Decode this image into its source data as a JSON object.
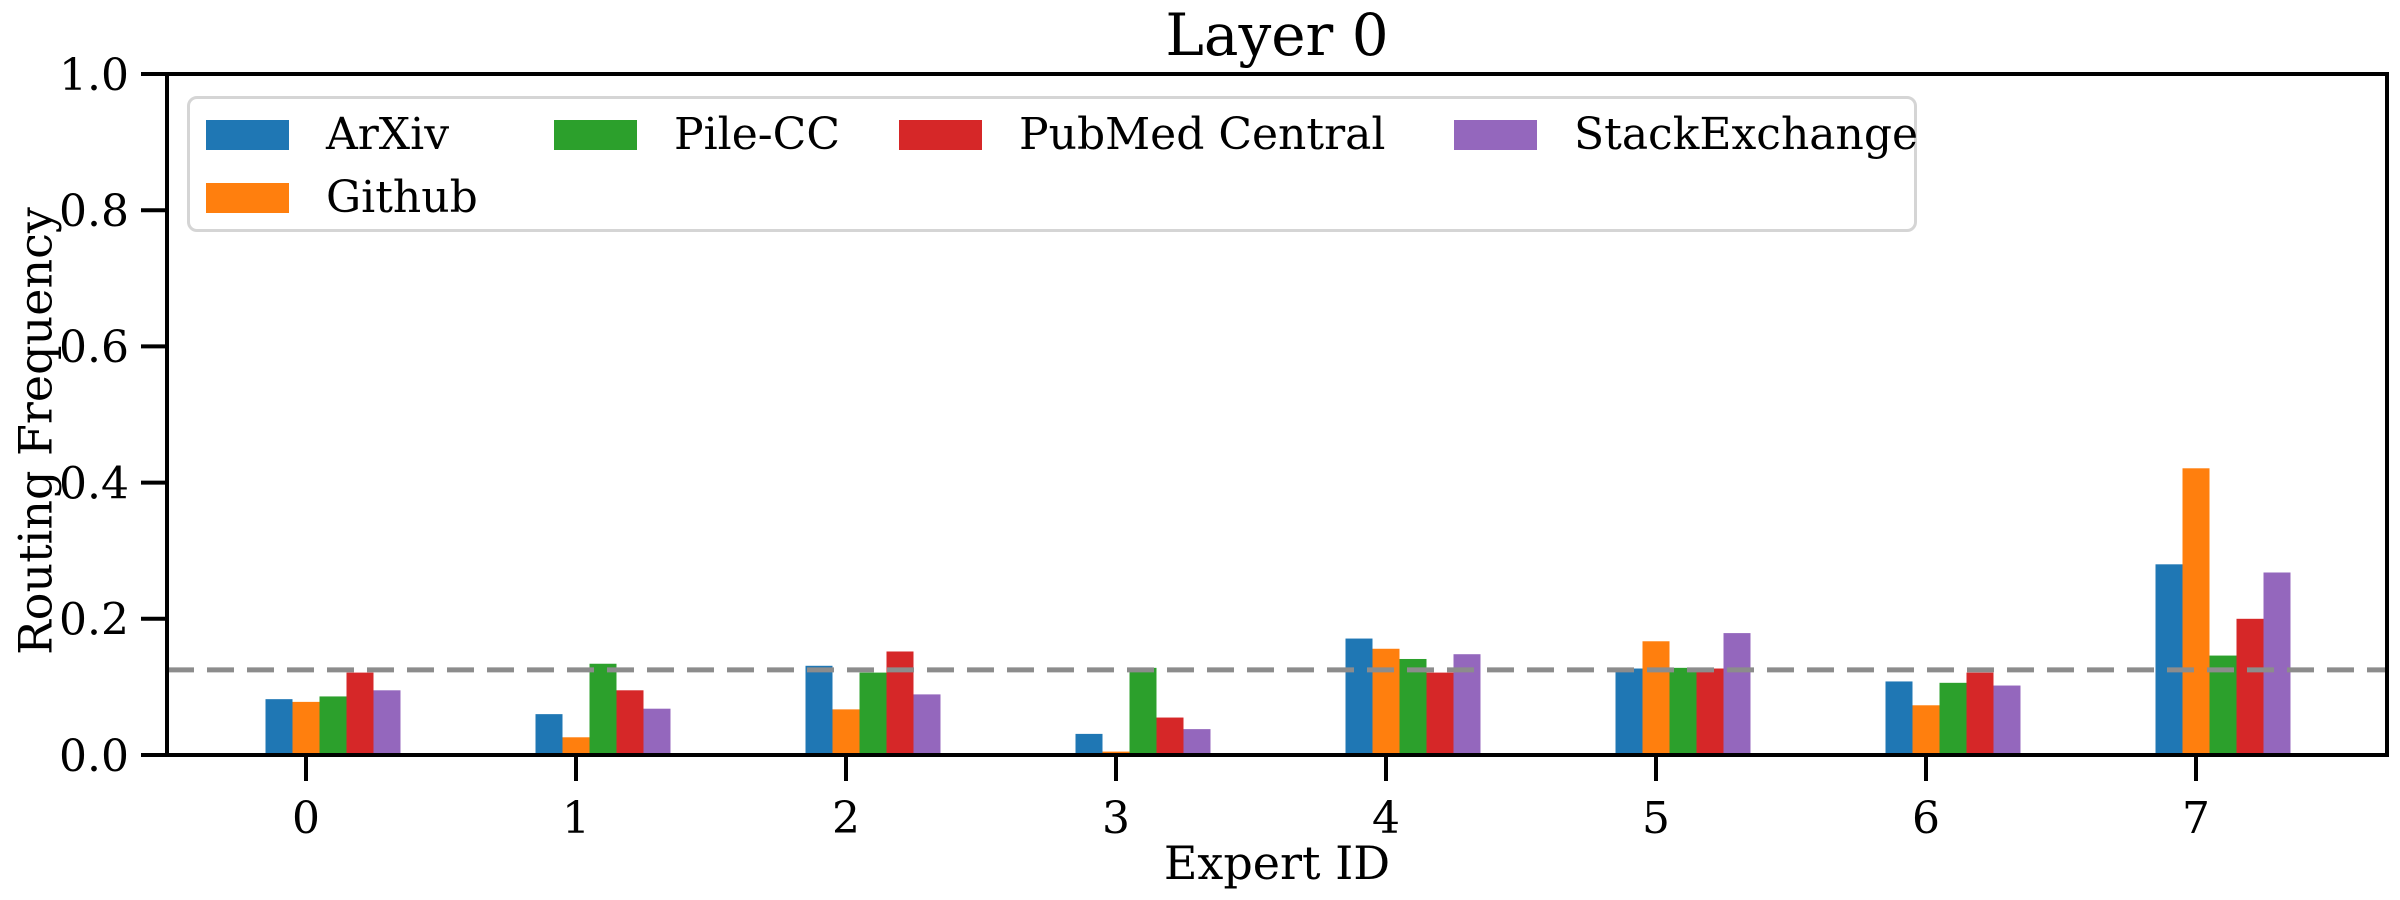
{
  "figure": {
    "background": "#ffffff",
    "axis_color": "#000000"
  },
  "chart_data": {
    "type": "bar",
    "title": "Layer 0",
    "xlabel": "Expert ID",
    "ylabel": "Routing Frequency",
    "categories": [
      "0",
      "1",
      "2",
      "3",
      "4",
      "5",
      "6",
      "7"
    ],
    "series": [
      {
        "name": "ArXiv",
        "color": "#1f77b4",
        "values": [
          0.082,
          0.06,
          0.131,
          0.031,
          0.171,
          0.127,
          0.108,
          0.28
        ]
      },
      {
        "name": "Github",
        "color": "#ff7f0e",
        "values": [
          0.078,
          0.026,
          0.067,
          0.005,
          0.156,
          0.167,
          0.073,
          0.421
        ]
      },
      {
        "name": "Pile-CC",
        "color": "#2ca02c",
        "values": [
          0.086,
          0.134,
          0.121,
          0.128,
          0.141,
          0.128,
          0.106,
          0.146
        ]
      },
      {
        "name": "PubMed Central",
        "color": "#d62728",
        "values": [
          0.121,
          0.095,
          0.152,
          0.055,
          0.121,
          0.127,
          0.121,
          0.2
        ]
      },
      {
        "name": "StackExchange",
        "color": "#9467bd",
        "values": [
          0.095,
          0.068,
          0.089,
          0.038,
          0.148,
          0.179,
          0.102,
          0.268
        ]
      }
    ],
    "ytick_labels": [
      "0.0",
      "0.2",
      "0.4",
      "0.6",
      "0.8",
      "1.0"
    ],
    "yticks": [
      0.0,
      0.2,
      0.4,
      0.6,
      0.8,
      1.0
    ],
    "ylim": [
      0,
      1.0
    ],
    "reference_line": {
      "value": 0.125,
      "style": "dashed",
      "color": "#8c8c8c"
    },
    "legend_position": "upper left",
    "grid": false
  }
}
